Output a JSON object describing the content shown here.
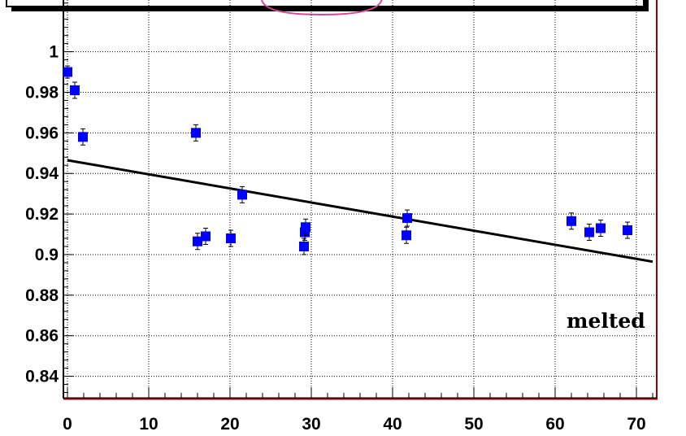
{
  "chart_data": {
    "type": "scatter",
    "title": "",
    "xlabel": "",
    "ylabel": "",
    "xlim": [
      -0.5,
      72.5
    ],
    "ylim": [
      0.829,
      1.0255
    ],
    "grid": true,
    "x_ticks": [
      0,
      10,
      20,
      30,
      40,
      50,
      60,
      70
    ],
    "y_ticks": [
      0.84,
      0.86,
      0.88,
      0.9,
      0.92,
      0.94,
      0.96,
      0.98,
      1
    ],
    "x_tick_labels": [
      "0",
      "10",
      "20",
      "30",
      "40",
      "50",
      "60",
      "70"
    ],
    "y_tick_labels": [
      "0.84",
      "0.86",
      "0.88",
      "0.9",
      "0.92",
      "0.94",
      "0.96",
      "0.98",
      "1"
    ],
    "marker_color": "#0000ff",
    "fit_color": "#000000",
    "frame_color": "#a00000",
    "points": [
      {
        "x": 0.0,
        "y": 0.99,
        "err": 0.003
      },
      {
        "x": 0.9,
        "y": 0.981,
        "err": 0.004
      },
      {
        "x": 1.9,
        "y": 0.958,
        "err": 0.004
      },
      {
        "x": 15.8,
        "y": 0.96,
        "err": 0.004
      },
      {
        "x": 16.0,
        "y": 0.9065,
        "err": 0.004
      },
      {
        "x": 17.0,
        "y": 0.909,
        "err": 0.004
      },
      {
        "x": 20.1,
        "y": 0.908,
        "err": 0.004
      },
      {
        "x": 21.5,
        "y": 0.9295,
        "err": 0.004
      },
      {
        "x": 29.1,
        "y": 0.904,
        "err": 0.004
      },
      {
        "x": 29.2,
        "y": 0.911,
        "err": 0.004
      },
      {
        "x": 29.3,
        "y": 0.9135,
        "err": 0.004
      },
      {
        "x": 41.7,
        "y": 0.9095,
        "err": 0.004
      },
      {
        "x": 41.8,
        "y": 0.918,
        "err": 0.004
      },
      {
        "x": 62.0,
        "y": 0.9165,
        "err": 0.004
      },
      {
        "x": 64.2,
        "y": 0.911,
        "err": 0.004
      },
      {
        "x": 65.6,
        "y": 0.913,
        "err": 0.004
      },
      {
        "x": 68.9,
        "y": 0.912,
        "err": 0.004
      }
    ],
    "fit_line": {
      "x": [
        0,
        72
      ],
      "y": [
        0.9465,
        0.8965
      ]
    },
    "annotations": [
      {
        "text": "melted"
      }
    ]
  }
}
